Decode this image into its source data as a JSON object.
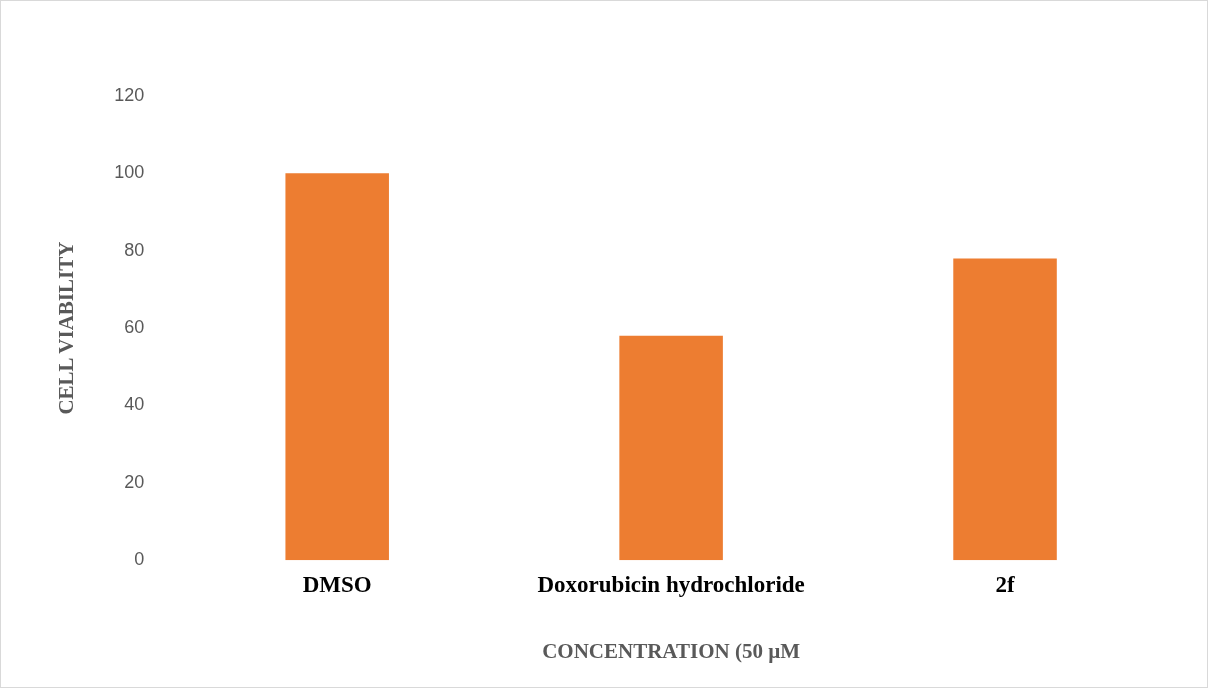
{
  "chart_data": {
    "type": "bar",
    "xlabel": "CONCENTRATION (50 µM",
    "ylabel": "CELL VIABILITY",
    "categories": [
      "DMSO",
      "Doxorubicin hydrochloride",
      "2f"
    ],
    "values": [
      100,
      58,
      78
    ],
    "color": "#ed7d31",
    "ylim": [
      0,
      120
    ],
    "yticks": [
      0,
      20,
      40,
      60,
      80,
      100,
      120
    ],
    "grid": false,
    "legend": false
  }
}
